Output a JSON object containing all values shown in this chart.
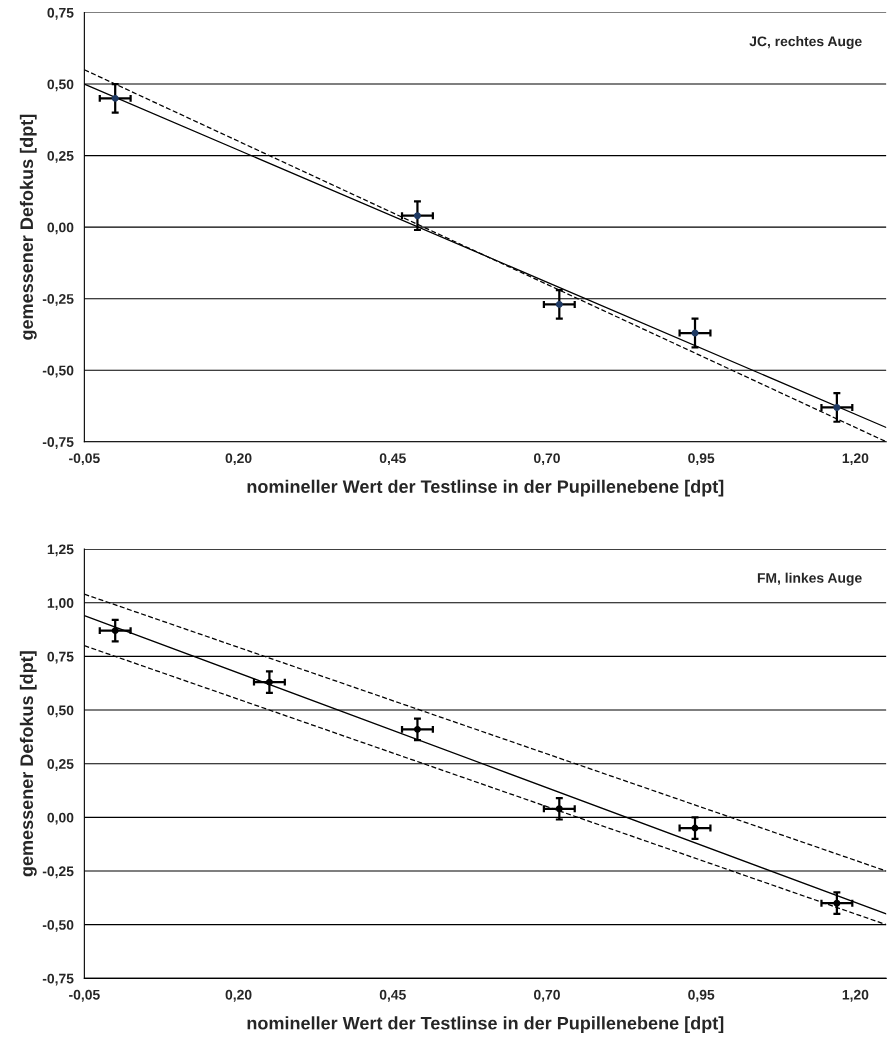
{
  "chart_data": [
    {
      "type": "scatter",
      "xlabel": "nomineller Wert der Testlinse in der Pupillenebene [dpt]",
      "ylabel": "gemessener Defokus [dpt]",
      "annotations": [
        "JC, rechtes Auge"
      ],
      "xlim": [
        -0.05,
        1.25
      ],
      "xticks": [
        {
          "value": -0.05,
          "label": "-0,05"
        },
        {
          "value": 0.2,
          "label": "0,20"
        },
        {
          "value": 0.45,
          "label": "0,45"
        },
        {
          "value": 0.7,
          "label": "0,70"
        },
        {
          "value": 0.95,
          "label": "0,95"
        },
        {
          "value": 1.2,
          "label": "1,20"
        }
      ],
      "ylim": [
        -0.75,
        0.75
      ],
      "yticks": [
        {
          "value": -0.75,
          "label": "-0,75"
        },
        {
          "value": -0.5,
          "label": "-0,50"
        },
        {
          "value": -0.25,
          "label": "-0,25"
        },
        {
          "value": 0,
          "label": "0,00"
        },
        {
          "value": 0.25,
          "label": "0,25"
        },
        {
          "value": 0.5,
          "label": "0,50"
        },
        {
          "value": 0.75,
          "label": "0,75"
        }
      ],
      "grid": "y",
      "series": [
        {
          "color": "#1f3a64",
          "marker": "circle",
          "x": [
            0.0,
            0.49,
            0.72,
            0.94,
            1.17
          ],
          "values": [
            0.45,
            0.04,
            -0.27,
            -0.37,
            -0.63
          ],
          "errors": [
            0.05,
            0.05,
            0.05,
            0.05,
            0.05
          ],
          "xerrors": [
            0.025,
            0.025,
            0.025,
            0.025,
            0.025
          ]
        },
        {
          "type": "line",
          "color": "#000000",
          "line_style": "solid",
          "x": [
            -0.05,
            1.25
          ],
          "values": [
            0.5,
            -0.7
          ]
        },
        {
          "type": "line",
          "color": "#000000",
          "line_style": "dashed",
          "x": [
            -0.05,
            1.25
          ],
          "values": [
            0.55,
            -0.75
          ]
        }
      ]
    },
    {
      "type": "scatter",
      "xlabel": "nomineller Wert der Testlinse in der Pupillenebene [dpt]",
      "ylabel": "gemessener Defokus [dpt]",
      "annotations": [
        "FM, linkes Auge"
      ],
      "xlim": [
        -0.05,
        1.25
      ],
      "xticks": [
        {
          "value": -0.05,
          "label": "-0,05"
        },
        {
          "value": 0.2,
          "label": "0,20"
        },
        {
          "value": 0.45,
          "label": "0,45"
        },
        {
          "value": 0.7,
          "label": "0,70"
        },
        {
          "value": 0.95,
          "label": "0,95"
        },
        {
          "value": 1.2,
          "label": "1,20"
        }
      ],
      "ylim": [
        -0.75,
        1.25
      ],
      "yticks": [
        {
          "value": -0.75,
          "label": "-0,75"
        },
        {
          "value": -0.5,
          "label": "-0,50"
        },
        {
          "value": -0.25,
          "label": "-0,25"
        },
        {
          "value": 0,
          "label": "0,00"
        },
        {
          "value": 0.25,
          "label": "0,25"
        },
        {
          "value": 0.5,
          "label": "0,50"
        },
        {
          "value": 0.75,
          "label": "0,75"
        },
        {
          "value": 1.0,
          "label": "1,00"
        },
        {
          "value": 1.25,
          "label": "1,25"
        }
      ],
      "grid": "y",
      "series": [
        {
          "color": "#000000",
          "marker": "circle",
          "x": [
            0.0,
            0.25,
            0.49,
            0.72,
            0.94,
            1.17
          ],
          "values": [
            0.87,
            0.63,
            0.41,
            0.04,
            -0.05,
            -0.4
          ],
          "errors": [
            0.05,
            0.05,
            0.05,
            0.05,
            0.05,
            0.05
          ],
          "xerrors": [
            0.025,
            0.025,
            0.025,
            0.025,
            0.025,
            0.025
          ]
        },
        {
          "type": "line",
          "color": "#000000",
          "line_style": "solid",
          "x": [
            -0.05,
            1.25
          ],
          "values": [
            0.94,
            -0.45
          ]
        },
        {
          "type": "line",
          "color": "#000000",
          "line_style": "dashed",
          "x": [
            -0.05,
            1.25
          ],
          "values": [
            1.04,
            -0.25
          ]
        },
        {
          "type": "line",
          "color": "#000000",
          "line_style": "dashed",
          "x": [
            -0.05,
            1.25
          ],
          "values": [
            0.8,
            -0.5
          ]
        }
      ]
    }
  ]
}
